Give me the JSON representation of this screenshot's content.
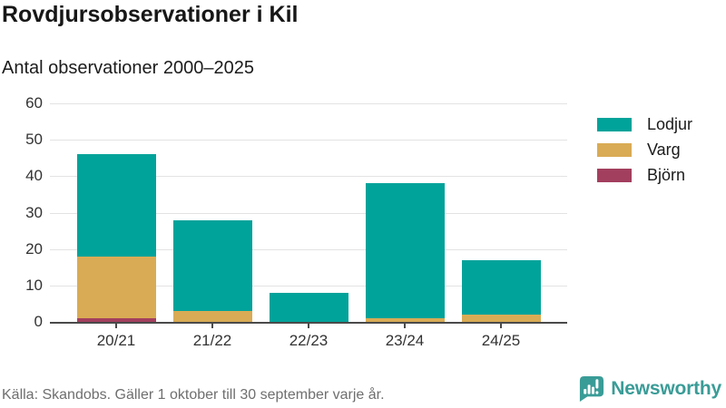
{
  "header": {
    "title": "Rovdjursobservationer i Kil",
    "subtitle": "Antal observationer 2000–2025"
  },
  "chart_data": {
    "type": "bar",
    "stacked": true,
    "title": "Rovdjursobservationer i Kil",
    "subtitle": "Antal observationer 2000–2025",
    "categories": [
      "20/21",
      "21/22",
      "22/23",
      "23/24",
      "24/25"
    ],
    "series": [
      {
        "name": "Lodjur",
        "color": "#00a39a",
        "values": [
          28,
          25,
          8,
          37,
          15
        ]
      },
      {
        "name": "Varg",
        "color": "#d9ab55",
        "values": [
          17,
          3,
          0,
          1,
          2
        ]
      },
      {
        "name": "Björn",
        "color": "#a33f5e",
        "values": [
          1,
          0,
          0,
          0,
          0
        ]
      }
    ],
    "totals": [
      46,
      28,
      8,
      38,
      17
    ],
    "xlabel": "",
    "ylabel": "",
    "ylim": [
      0,
      60
    ],
    "yticks": [
      0,
      10,
      20,
      30,
      40,
      50,
      60
    ],
    "grid": true,
    "legend_position": "right"
  },
  "footer": {
    "source": "Källa: Skandobs. Gäller 1 oktober till 30 september varje år.",
    "brand": "Newsworthy"
  },
  "colors": {
    "lodjur_teal": "#00a39a",
    "varg_gold": "#d9ab55",
    "bjorn_maroon": "#a33f5e",
    "brand_teal": "#3a9c97",
    "gridline": "#e3e3e3",
    "axis": "#4a4a4a",
    "text_dark": "#171717",
    "text_gray": "#6f6f6f"
  }
}
